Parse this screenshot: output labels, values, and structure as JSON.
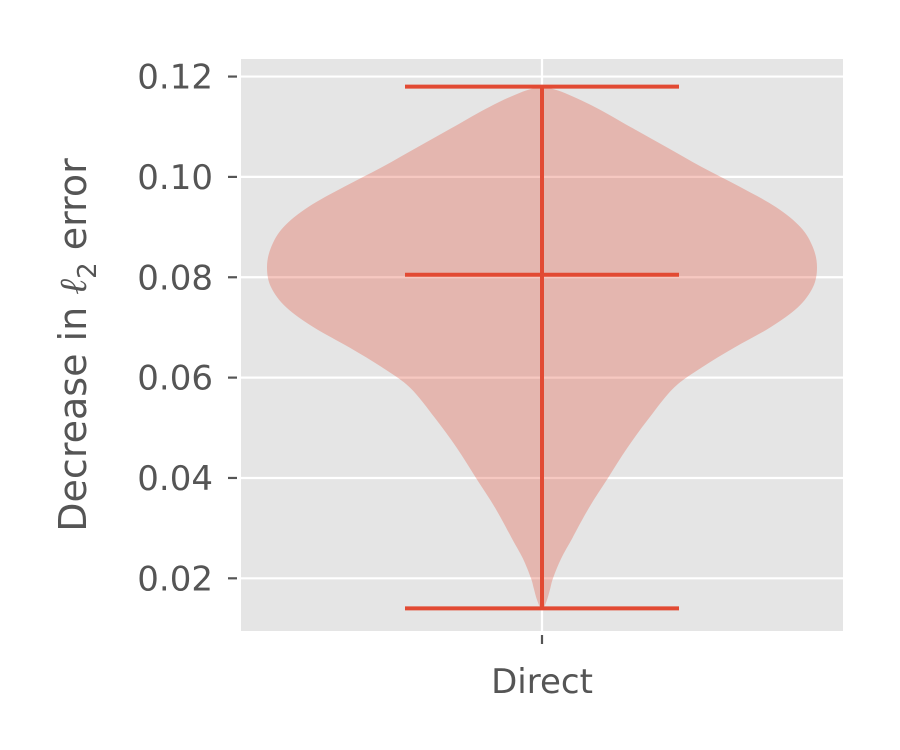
{
  "chart_data": {
    "type": "violin",
    "categories": [
      "Direct"
    ],
    "ylabel": "Decrease in ℓ₂ error",
    "ylabel_parts": {
      "prefix": "Decrease in ",
      "symbol": "ℓ",
      "subscript": "2",
      "suffix": " error"
    },
    "ylim": [
      0.0095,
      0.1235
    ],
    "yticks": [
      0.02,
      0.04,
      0.06,
      0.08,
      0.1,
      0.12
    ],
    "ytick_labels": [
      "0.02",
      "0.04",
      "0.06",
      "0.08",
      "0.10",
      "0.12"
    ],
    "grid": true,
    "series": [
      {
        "category": "Direct",
        "min": 0.014,
        "max": 0.118,
        "median": 0.0805,
        "density": [
          [
            0.014,
            0.005
          ],
          [
            0.016,
            0.02
          ],
          [
            0.018,
            0.03
          ],
          [
            0.02,
            0.04
          ],
          [
            0.024,
            0.07
          ],
          [
            0.028,
            0.11
          ],
          [
            0.034,
            0.17
          ],
          [
            0.04,
            0.24
          ],
          [
            0.046,
            0.31
          ],
          [
            0.052,
            0.39
          ],
          [
            0.058,
            0.48
          ],
          [
            0.062,
            0.58
          ],
          [
            0.066,
            0.7
          ],
          [
            0.07,
            0.83
          ],
          [
            0.074,
            0.93
          ],
          [
            0.078,
            0.985
          ],
          [
            0.082,
            1.0
          ],
          [
            0.086,
            0.985
          ],
          [
            0.09,
            0.94
          ],
          [
            0.094,
            0.85
          ],
          [
            0.098,
            0.72
          ],
          [
            0.102,
            0.58
          ],
          [
            0.106,
            0.45
          ],
          [
            0.11,
            0.32
          ],
          [
            0.114,
            0.19
          ],
          [
            0.117,
            0.07
          ],
          [
            0.118,
            0.0
          ]
        ]
      }
    ],
    "colors": {
      "background": "#e5e5e5",
      "grid": "#ffffff",
      "body_fill": "#e24a33",
      "body_opacity": 0.3,
      "lines": "#e24a33",
      "text": "#555555"
    }
  }
}
